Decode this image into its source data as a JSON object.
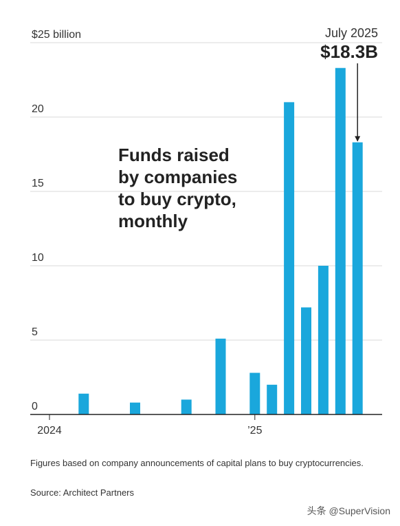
{
  "chart_data": {
    "type": "bar",
    "title": "Funds raised by companies to buy crypto, monthly",
    "title_lines": [
      "Funds raised",
      "by companies",
      "to buy crypto,",
      "monthly"
    ],
    "y_unit_label": "$25 billion",
    "ylim": [
      0,
      25
    ],
    "yticks": [
      0,
      5,
      10,
      15,
      20,
      25
    ],
    "ytick_labels": [
      "0",
      "5",
      "10",
      "15",
      "20",
      "$25 billion"
    ],
    "grid": true,
    "x_labels": [
      {
        "label": "2024",
        "month": "2024-01"
      },
      {
        "label": "’25",
        "month": "2025-01"
      }
    ],
    "months": [
      "2024-01",
      "2024-02",
      "2024-03",
      "2024-04",
      "2024-05",
      "2024-06",
      "2024-07",
      "2024-08",
      "2024-09",
      "2024-10",
      "2024-11",
      "2024-12",
      "2025-01",
      "2025-02",
      "2025-03",
      "2025-04",
      "2025-05",
      "2025-06",
      "2025-07"
    ],
    "values": [
      0,
      0,
      1.4,
      0,
      0,
      0.8,
      0,
      0,
      1.0,
      0,
      5.1,
      0,
      2.8,
      2.0,
      21.0,
      7.2,
      10.0,
      23.3,
      18.3
    ],
    "annotation": {
      "month": "2025-07",
      "label_top": "July 2025",
      "label_bottom": "$18.3B"
    },
    "bar_color": "#1aa7dc"
  },
  "footnote": "Figures based on company announcements of capital plans to buy cryptocurrencies.",
  "source": "Source: Architect Partners",
  "watermark": "头条 @SuperVision"
}
